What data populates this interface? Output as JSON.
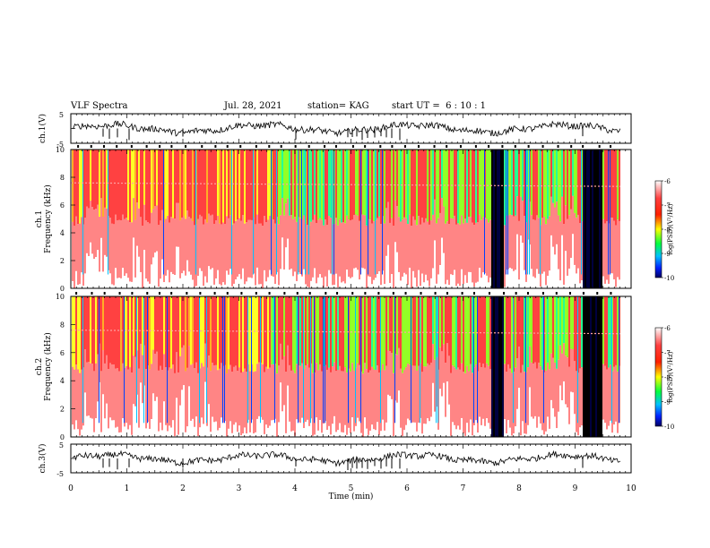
{
  "header": {
    "title": "VLF Spectra",
    "date": "Jul. 28, 2021",
    "station": "station= KAG",
    "start": "start UT =  6 : 10 : 1"
  },
  "chart_data": [
    {
      "type": "line",
      "panel": "waveform-ch1",
      "ylabel": "ch.1(V)",
      "ylim": [
        -5,
        5
      ],
      "ytick_labels": [
        "-5",
        "5"
      ],
      "xlim": [
        0,
        10
      ]
    },
    {
      "type": "heatmap",
      "panel": "spectrogram-ch1",
      "ylabel_line1": "ch.1",
      "ylabel_line2": "Frequency (kHz)",
      "ylim": [
        0,
        10
      ],
      "ytick_labels": [
        "0",
        "2",
        "4",
        "6",
        "8",
        "10"
      ],
      "xlim": [
        0,
        10
      ],
      "colorbar": {
        "label": "log(PSD)(V²/Hz)",
        "range": [
          -10,
          -6
        ],
        "tick_labels": [
          "-6",
          "-7",
          "-8",
          "-9",
          "-10"
        ]
      }
    },
    {
      "type": "heatmap",
      "panel": "spectrogram-ch2",
      "ylabel_line1": "ch.2",
      "ylabel_line2": "Frequency (kHz)",
      "ylim": [
        0,
        10
      ],
      "ytick_labels": [
        "0",
        "2",
        "4",
        "6",
        "8",
        "10"
      ],
      "xlim": [
        0,
        10
      ],
      "colorbar": {
        "label": "log(PSD)(V²/Hz)",
        "range": [
          -10,
          -6
        ],
        "tick_labels": [
          "-6",
          "-7",
          "-8",
          "-9",
          "-10"
        ]
      }
    },
    {
      "type": "line",
      "panel": "waveform-ch3",
      "ylabel": "ch.3(V)",
      "ylim": [
        -5,
        5
      ],
      "ytick_labels": [
        "-5",
        "5"
      ],
      "xlim": [
        0,
        10
      ],
      "xlabel": "Time (min)",
      "xtick_labels": [
        "0",
        "1",
        "2",
        "3",
        "4",
        "5",
        "6",
        "7",
        "8",
        "9",
        "10"
      ]
    }
  ],
  "colors": {
    "colormap": [
      "#000080",
      "#0040ff",
      "#00c0ff",
      "#00ff80",
      "#80ff00",
      "#ffff00",
      "#ffa000",
      "#ff2020",
      "#ffffff"
    ]
  }
}
